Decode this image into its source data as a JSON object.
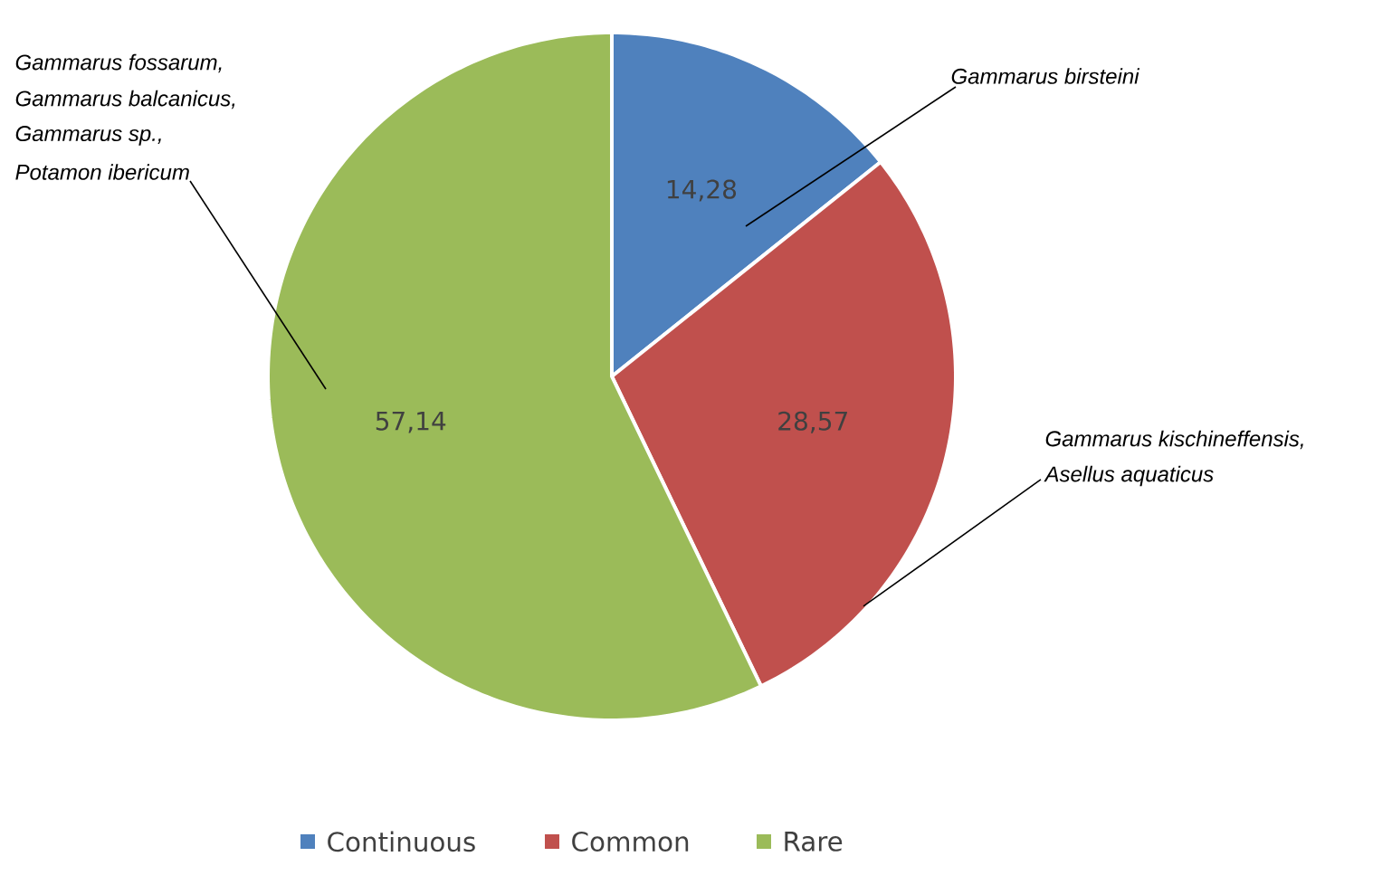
{
  "chart_data": {
    "type": "pie",
    "categories": [
      "Continuous",
      "Common",
      "Rare"
    ],
    "values": [
      14.28,
      28.57,
      57.14
    ],
    "value_labels": [
      "14,28",
      "28,57",
      "57,14"
    ],
    "colors": [
      "#4f81bd",
      "#c0504d",
      "#9bbb59"
    ],
    "legend": "bottom",
    "annotations": [
      {
        "text": "Gammarus birsteini",
        "x": "Continuous"
      },
      {
        "text": "Gammarus kischineffensis,",
        "x": "Common"
      },
      {
        "text": "Asellus aquaticus",
        "x": "Common"
      },
      {
        "text": "Gammarus fossarum,",
        "x": "Rare"
      },
      {
        "text": "Gammarus balcanicus,",
        "x": "Rare"
      },
      {
        "text": "Gammarus sp.,",
        "x": "Rare"
      },
      {
        "text": "Potamon ibericum",
        "x": "Rare"
      }
    ]
  }
}
